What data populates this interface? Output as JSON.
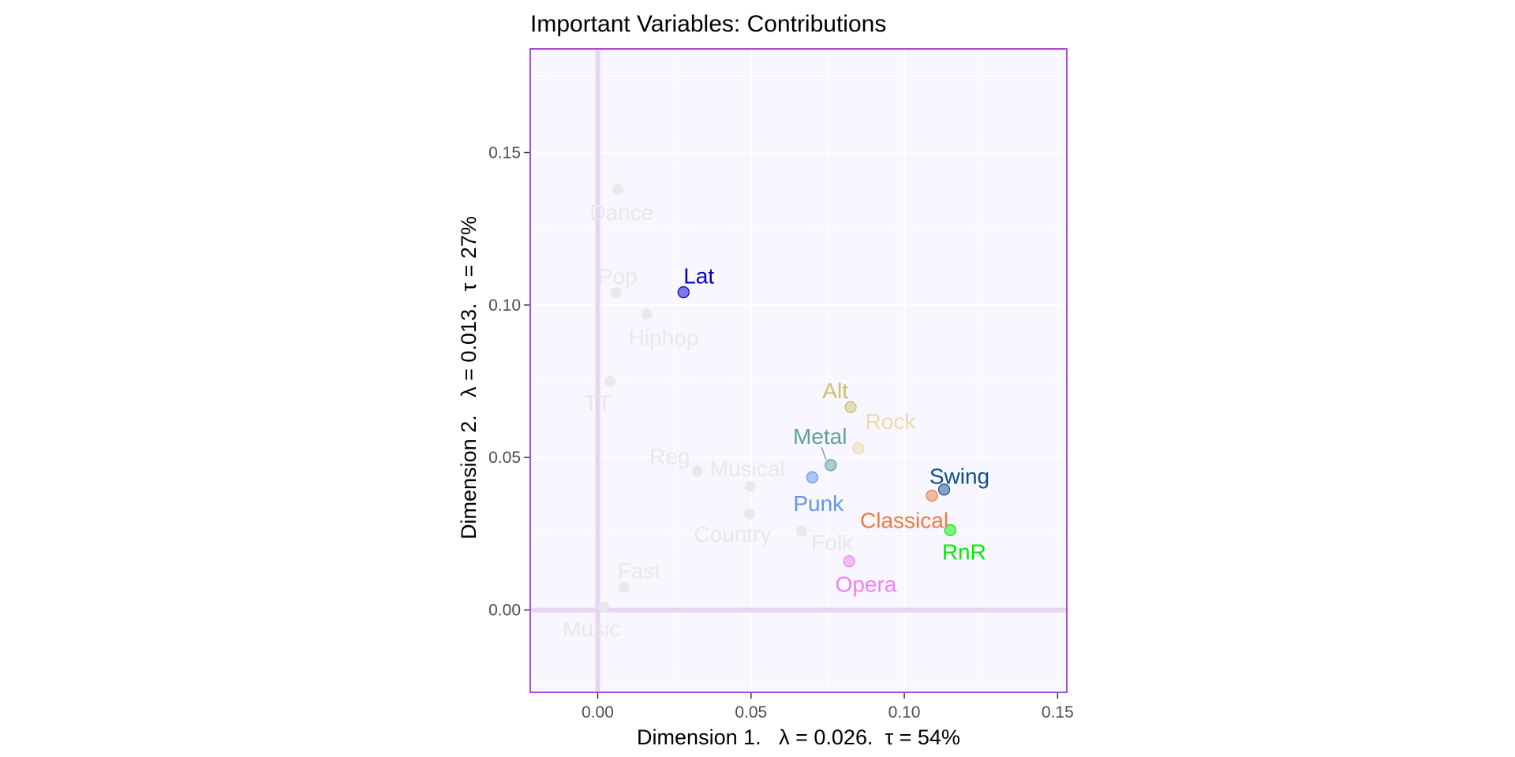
{
  "chart_data": {
    "type": "scatter",
    "title": "Important Variables: Contributions",
    "xlabel": "Dimension 1.   λ = 0.026.  τ = 54%",
    "ylabel": "Dimension 2.   λ = 0.013.  τ = 27%",
    "xlim": [
      -0.022,
      0.153
    ],
    "ylim": [
      -0.027,
      0.184
    ],
    "xticks": [
      0.0,
      0.05,
      0.1,
      0.15
    ],
    "xtick_labels": [
      "0.00",
      "0.05",
      "0.10",
      "0.15"
    ],
    "yticks": [
      0.0,
      0.05,
      0.1,
      0.15
    ],
    "ytick_labels": [
      "0.00",
      "0.05",
      "0.10",
      "0.15"
    ],
    "grid": true,
    "background_color": "#f8f6ff",
    "border_color": "#a64dd6",
    "reference_line_color": "#e6d6f2",
    "points": [
      {
        "label": "Dance",
        "x": 0.0066,
        "y": 0.138,
        "color": "#e8e8e8",
        "label_dx": 0.0012,
        "label_dy": -0.0075,
        "highlight": false
      },
      {
        "label": "Pop",
        "x": 0.006,
        "y": 0.104,
        "color": "#e8e8e8",
        "label_dx": 0.0005,
        "label_dy": 0.0055,
        "highlight": false
      },
      {
        "label": "Hiphop",
        "x": 0.016,
        "y": 0.097,
        "color": "#e8e8e8",
        "label_dx": 0.0055,
        "label_dy": -0.0075,
        "highlight": false
      },
      {
        "label": "TT",
        "x": 0.004,
        "y": 0.075,
        "color": "#e8e8e8",
        "label_dx": -0.004,
        "label_dy": -0.007,
        "highlight": false
      },
      {
        "label": "Reg",
        "x": 0.0325,
        "y": 0.0455,
        "color": "#e8e8e8",
        "label_dx": -0.009,
        "label_dy": 0.005,
        "highlight": false
      },
      {
        "label": "Musical",
        "x": 0.0498,
        "y": 0.0405,
        "color": "#e8e8e8",
        "label_dx": -0.001,
        "label_dy": 0.006,
        "highlight": false
      },
      {
        "label": "Country",
        "x": 0.0495,
        "y": 0.0315,
        "color": "#e8e8e8",
        "label_dx": -0.0055,
        "label_dy": -0.0065,
        "highlight": false
      },
      {
        "label": "Folk",
        "x": 0.0665,
        "y": 0.0258,
        "color": "#e8e8e8",
        "label_dx": 0.01,
        "label_dy": -0.0035,
        "highlight": false
      },
      {
        "label": "Fast",
        "x": 0.0085,
        "y": 0.0075,
        "color": "#e8e8e8",
        "label_dx": 0.005,
        "label_dy": 0.0055,
        "highlight": false
      },
      {
        "label": "Music",
        "x": 0.002,
        "y": 0.001,
        "color": "#e8e8e8",
        "label_dx": -0.004,
        "label_dy": -0.007,
        "highlight": false
      },
      {
        "label": "Lat",
        "x": 0.028,
        "y": 0.1042,
        "color": "#0000cd",
        "label_dx": 0.005,
        "label_dy": 0.0055,
        "highlight": true
      },
      {
        "label": "Alt",
        "x": 0.0825,
        "y": 0.0665,
        "color": "#cdbe70",
        "label_dx": -0.005,
        "label_dy": 0.0055,
        "highlight": true
      },
      {
        "label": "Rock",
        "x": 0.085,
        "y": 0.053,
        "color": "#eed8ae",
        "label_dx": 0.0105,
        "label_dy": 0.009,
        "highlight": true
      },
      {
        "label": "Metal",
        "x": 0.076,
        "y": 0.0475,
        "color": "#5f9ea0",
        "label_dx": -0.0035,
        "label_dy": 0.0095,
        "highlight": true
      },
      {
        "label": "Punk",
        "x": 0.07,
        "y": 0.0435,
        "color": "#6495ed",
        "label_dx": 0.002,
        "label_dy": -0.0085,
        "highlight": true
      },
      {
        "label": "Swing",
        "x": 0.113,
        "y": 0.0395,
        "color": "#104e8b",
        "label_dx": 0.005,
        "label_dy": 0.0045,
        "highlight": true
      },
      {
        "label": "Classical",
        "x": 0.109,
        "y": 0.0375,
        "color": "#ee7942",
        "label_dx": -0.009,
        "label_dy": -0.008,
        "highlight": true
      },
      {
        "label": "RnR",
        "x": 0.115,
        "y": 0.0262,
        "color": "#00ee00",
        "label_dx": 0.0045,
        "label_dy": -0.007,
        "highlight": true
      },
      {
        "label": "Opera",
        "x": 0.082,
        "y": 0.016,
        "color": "#ee82ee",
        "label_dx": 0.0055,
        "label_dy": -0.0075,
        "highlight": true
      }
    ]
  }
}
